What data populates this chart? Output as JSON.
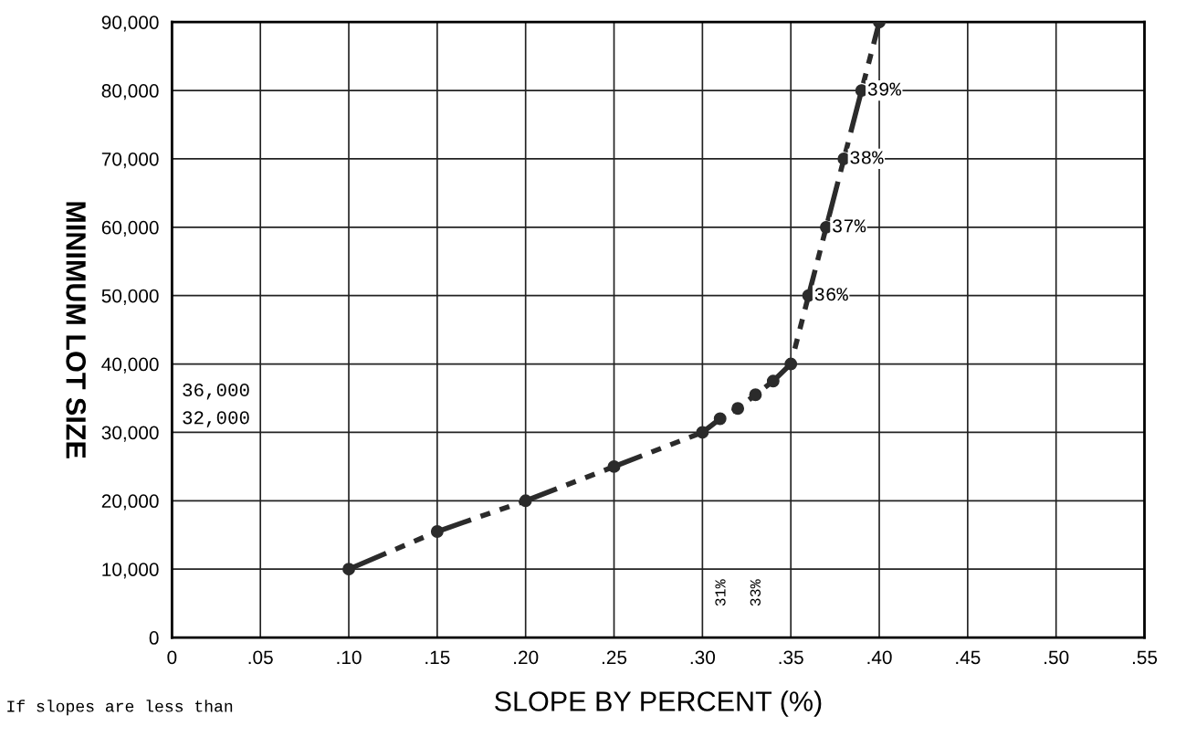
{
  "chart_data": {
    "type": "line",
    "xlabel": "SLOPE BY PERCENT (%)",
    "ylabel": "MINIMUM LOT SIZE",
    "x": [
      0.1,
      0.15,
      0.2,
      0.25,
      0.3,
      0.31,
      0.32,
      0.33,
      0.34,
      0.35,
      0.36,
      0.37,
      0.38,
      0.39,
      0.4
    ],
    "series": [
      {
        "color": "#2b2b2b",
        "values": [
          10000,
          15500,
          20000,
          25000,
          30000,
          32000,
          33500,
          35500,
          37500,
          40000,
          50000,
          60000,
          70000,
          80000,
          90000
        ]
      }
    ],
    "xlim": [
      0,
      0.55
    ],
    "xticks": [
      0,
      {
        "value": 0.05,
        "label": ".05"
      },
      {
        "value": 0.1,
        "label": ".10"
      },
      {
        "value": 0.15,
        "label": ".15"
      },
      {
        "value": 0.2,
        "label": ".20"
      },
      {
        "value": 0.25,
        "label": ".25"
      },
      {
        "value": 0.3,
        "label": ".30"
      },
      {
        "value": 0.35,
        "label": ".35"
      },
      {
        "value": 0.4,
        "label": ".40"
      },
      {
        "value": 0.45,
        "label": ".45"
      },
      {
        "value": 0.5,
        "label": ".50"
      },
      {
        "value": 0.55,
        "label": ".55"
      }
    ],
    "ylim": [
      0,
      90000
    ],
    "yticks": [
      0,
      {
        "value": 10000,
        "label": "10,000"
      },
      {
        "value": 20000,
        "label": "20,000"
      },
      {
        "value": 30000,
        "label": "30,000"
      },
      {
        "value": 40000,
        "label": "40,000"
      },
      {
        "value": 50000,
        "label": "50,000"
      },
      {
        "value": 60000,
        "label": "60,000"
      },
      {
        "value": 70000,
        "label": "70,000"
      },
      {
        "value": 80000,
        "label": "80,000"
      },
      {
        "value": 90000,
        "label": "90,000"
      }
    ],
    "grid": true,
    "marker": "circle",
    "line_style": "dashed",
    "annotations": [
      "36,000",
      "32,000",
      "31%",
      "33%",
      {
        "text": "36%",
        "x": 0.36,
        "y": 50000
      },
      {
        "text": "37%",
        "x": 0.37,
        "y": 60000
      },
      {
        "text": "38%",
        "x": 0.38,
        "y": 70000
      },
      {
        "text": "39%",
        "x": 0.39,
        "y": 80000
      },
      "If slopes are less than"
    ]
  }
}
